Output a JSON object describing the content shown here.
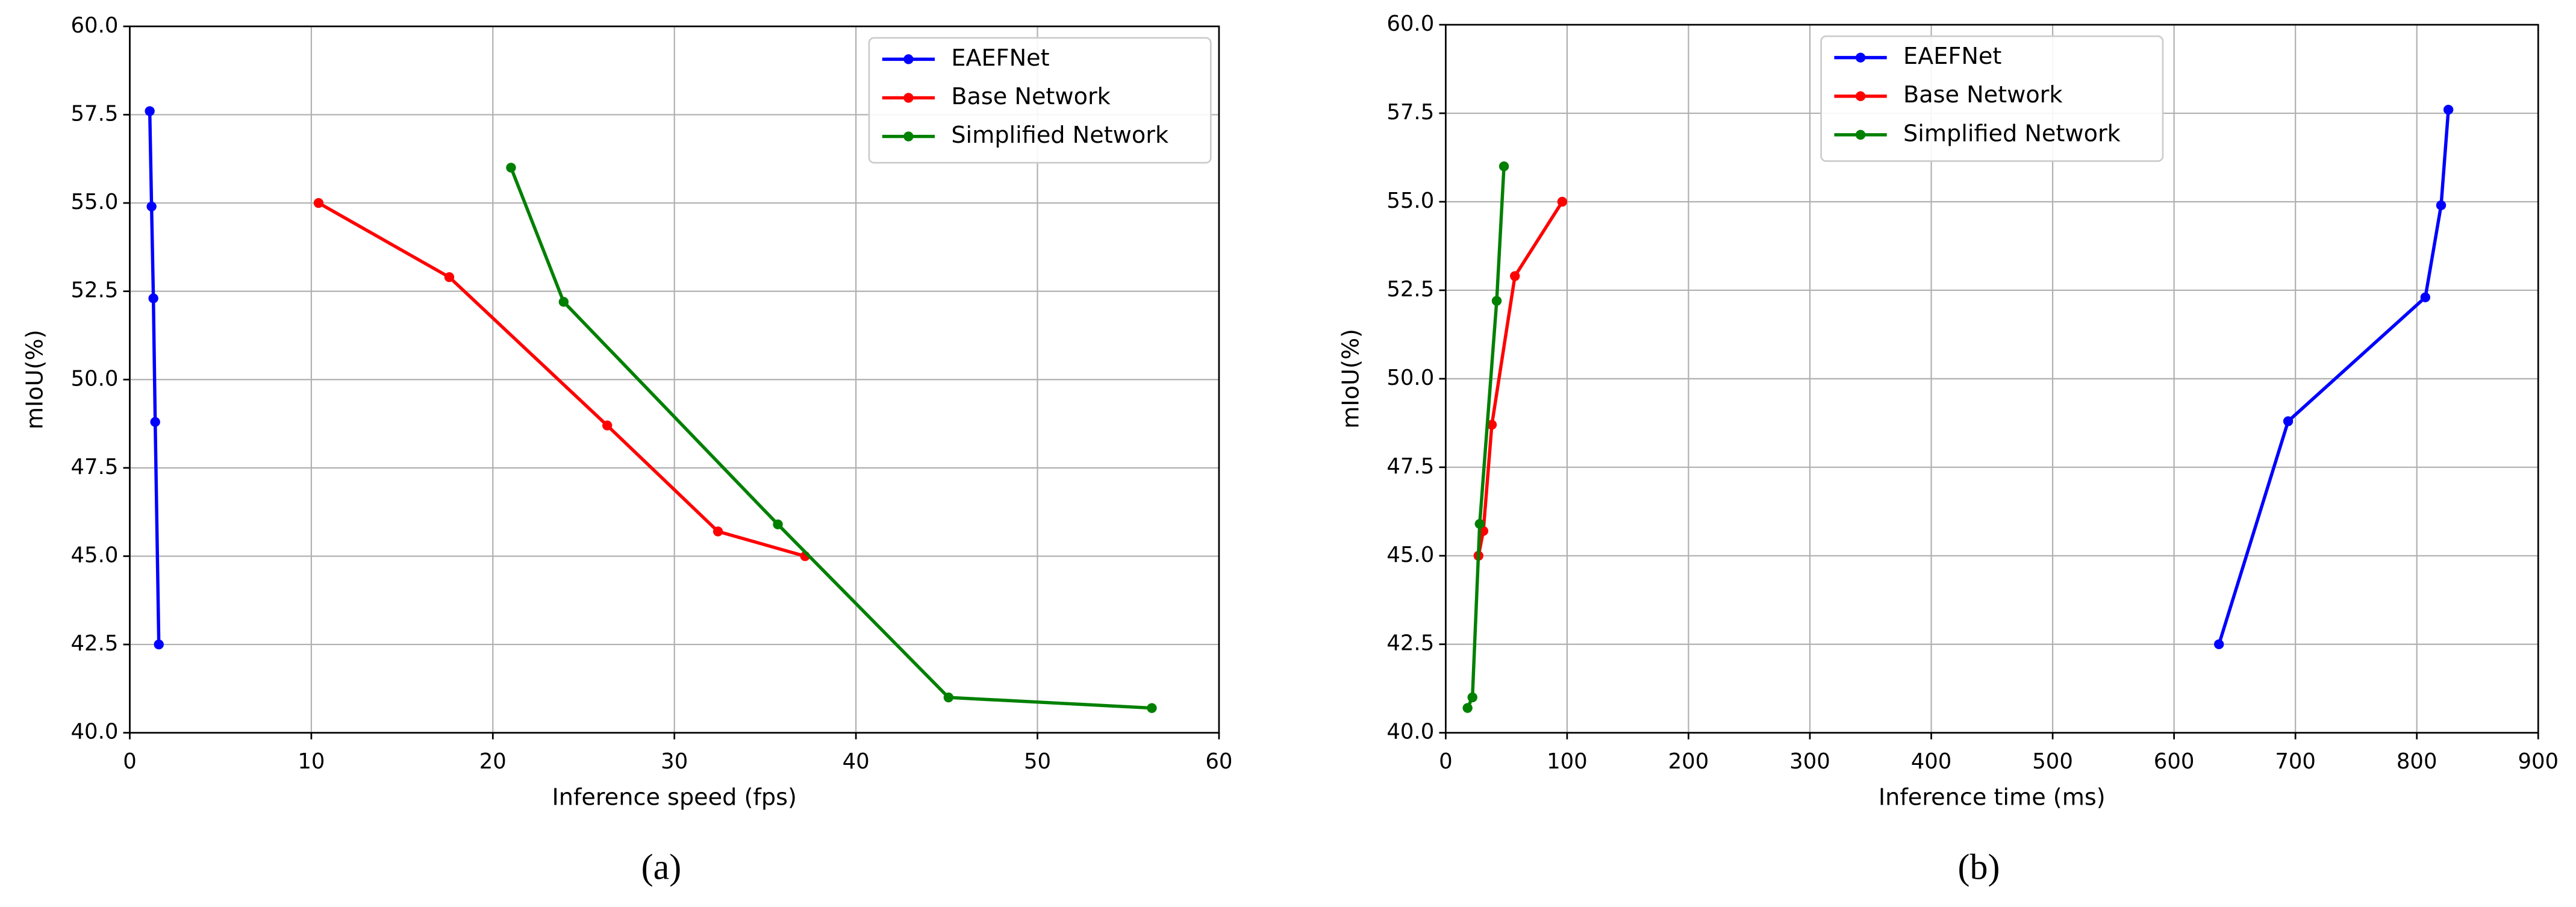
{
  "chart_data": [
    {
      "type": "line",
      "xlabel": "Inference speed (fps)",
      "ylabel": "mIoU(%)",
      "caption": "(a)",
      "xlim": [
        0,
        60
      ],
      "xticks": [
        0,
        10,
        20,
        30,
        40,
        50,
        60
      ],
      "ylim": [
        40,
        60
      ],
      "yticks": [
        {
          "value": 40,
          "label": "40.0"
        },
        42.5,
        {
          "value": 45,
          "label": "45.0"
        },
        47.5,
        {
          "value": 50,
          "label": "50.0"
        },
        52.5,
        {
          "value": 55,
          "label": "55.0"
        },
        57.5,
        {
          "value": 60,
          "label": "60.0"
        }
      ],
      "grid": true,
      "legend": "upper right",
      "series": [
        {
          "name": "EAEFNet",
          "color": "#0000ff",
          "x": [
            1.1,
            1.2,
            1.3,
            1.4,
            1.6
          ],
          "values": [
            57.6,
            54.9,
            52.3,
            48.8,
            42.5
          ]
        },
        {
          "name": "Base Network",
          "color": "#ff0000",
          "x": [
            10.4,
            17.6,
            26.3,
            32.4,
            37.2
          ],
          "values": [
            55.0,
            52.9,
            48.7,
            45.7,
            45.0
          ]
        },
        {
          "name": "Simplified Network",
          "color": "#008000",
          "x": [
            21.0,
            23.9,
            35.7,
            45.1,
            56.3
          ],
          "values": [
            56.0,
            52.2,
            45.9,
            41.0,
            40.7
          ]
        }
      ]
    },
    {
      "type": "line",
      "xlabel": "Inference time (ms)",
      "ylabel": "mIoU(%)",
      "caption": "(b)",
      "xlim": [
        0,
        900
      ],
      "xticks": [
        0,
        100,
        200,
        300,
        400,
        500,
        600,
        700,
        800,
        900
      ],
      "ylim": [
        40,
        60
      ],
      "yticks": [
        {
          "value": 40,
          "label": "40.0"
        },
        42.5,
        {
          "value": 45,
          "label": "45.0"
        },
        47.5,
        {
          "value": 50,
          "label": "50.0"
        },
        52.5,
        {
          "value": 55,
          "label": "55.0"
        },
        57.5,
        {
          "value": 60,
          "label": "60.0"
        }
      ],
      "grid": true,
      "legend": "upper center",
      "series": [
        {
          "name": "EAEFNet",
          "color": "#0000ff",
          "x": [
            826,
            820,
            807,
            694,
            637
          ],
          "values": [
            57.6,
            54.9,
            52.3,
            48.8,
            42.5
          ]
        },
        {
          "name": "Base Network",
          "color": "#ff0000",
          "x": [
            96,
            57,
            38,
            31,
            27
          ],
          "values": [
            55.0,
            52.9,
            48.7,
            45.7,
            45.0
          ]
        },
        {
          "name": "Simplified Network",
          "color": "#008000",
          "x": [
            48,
            42,
            28,
            22,
            18
          ],
          "values": [
            56.0,
            52.2,
            45.9,
            41.0,
            40.7
          ]
        }
      ]
    }
  ]
}
